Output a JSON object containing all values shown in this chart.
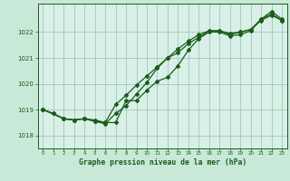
{
  "background_color": "#c8e8d8",
  "plot_bg_color": "#d8f0e8",
  "grid_color": "#a0c8b8",
  "line_color": "#1a5c1a",
  "title": "Graphe pression niveau de la mer (hPa)",
  "yticks": [
    1018,
    1019,
    1020,
    1021,
    1022
  ],
  "ylim": [
    1017.5,
    1023.1
  ],
  "xlim": [
    -0.5,
    23.5
  ],
  "line1_x": [
    0,
    1,
    2,
    3,
    4,
    5,
    6,
    7,
    8,
    9,
    10,
    11,
    12,
    13,
    14,
    15,
    16,
    17,
    18,
    19,
    20,
    21,
    22,
    23
  ],
  "line1_y": [
    1019.0,
    1018.85,
    1018.65,
    1018.6,
    1018.65,
    1018.55,
    1018.5,
    1018.5,
    1019.35,
    1019.35,
    1019.75,
    1020.1,
    1020.25,
    1020.7,
    1021.3,
    1021.75,
    1022.0,
    1022.0,
    1021.85,
    1021.9,
    1022.05,
    1022.5,
    1022.8,
    1022.5
  ],
  "line2_x": [
    0,
    1,
    2,
    3,
    4,
    5,
    6,
    7,
    8,
    9,
    10,
    11,
    12,
    13,
    14,
    15,
    16,
    17,
    18,
    19,
    20,
    21,
    22,
    23
  ],
  "line2_y": [
    1019.0,
    1018.85,
    1018.65,
    1018.6,
    1018.65,
    1018.6,
    1018.5,
    1019.2,
    1019.55,
    1019.95,
    1020.3,
    1020.65,
    1021.0,
    1021.2,
    1021.55,
    1021.8,
    1022.05,
    1022.05,
    1021.9,
    1022.0,
    1022.1,
    1022.45,
    1022.65,
    1022.45
  ],
  "line3_x": [
    0,
    2,
    3,
    4,
    5,
    6,
    7,
    8,
    9,
    10,
    11,
    12,
    13,
    14,
    15,
    16,
    17,
    18,
    19,
    20,
    21,
    22,
    23
  ],
  "line3_y": [
    1019.0,
    1018.65,
    1018.6,
    1018.65,
    1018.55,
    1018.45,
    1018.85,
    1019.15,
    1019.6,
    1020.05,
    1020.6,
    1021.0,
    1021.35,
    1021.65,
    1021.9,
    1022.05,
    1022.05,
    1021.95,
    1022.0,
    1022.1,
    1022.5,
    1022.7,
    1022.45
  ]
}
